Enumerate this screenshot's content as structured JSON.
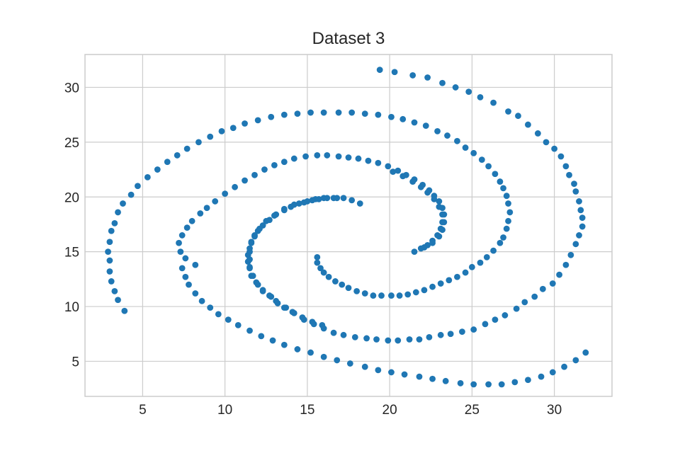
{
  "chart_data": {
    "type": "scatter",
    "title": "Dataset 3",
    "xlabel": "",
    "ylabel": "",
    "xlim": [
      1.5,
      33.5
    ],
    "ylim": [
      1.8,
      33.0
    ],
    "xticks": [
      5,
      10,
      15,
      20,
      25,
      30
    ],
    "yticks": [
      5,
      10,
      15,
      20,
      25,
      30
    ],
    "grid": true,
    "legend": "none",
    "marker_color": "#1f77b4",
    "series": [
      {
        "points": [
          [
            19.4,
            31.6
          ],
          [
            20.3,
            31.4
          ],
          [
            21.4,
            31.1
          ],
          [
            22.3,
            30.9
          ],
          [
            23.2,
            30.4
          ],
          [
            24.0,
            30.0
          ],
          [
            24.8,
            29.6
          ],
          [
            25.5,
            29.1
          ],
          [
            26.3,
            28.6
          ],
          [
            27.2,
            27.8
          ],
          [
            27.8,
            27.4
          ],
          [
            28.4,
            26.6
          ],
          [
            29.0,
            25.8
          ],
          [
            29.5,
            25.0
          ],
          [
            30.0,
            24.4
          ],
          [
            30.4,
            23.7
          ],
          [
            30.7,
            22.8
          ],
          [
            30.9,
            22.0
          ],
          [
            31.2,
            21.2
          ],
          [
            31.3,
            20.5
          ],
          [
            31.5,
            19.6
          ],
          [
            31.6,
            18.8
          ],
          [
            31.7,
            18.1
          ],
          [
            31.7,
            17.3
          ],
          [
            31.5,
            16.5
          ],
          [
            31.3,
            15.7
          ],
          [
            31.0,
            14.7
          ],
          [
            30.7,
            13.8
          ],
          [
            30.3,
            12.9
          ],
          [
            29.9,
            12.1
          ],
          [
            29.3,
            11.6
          ],
          [
            28.8,
            10.9
          ],
          [
            28.2,
            10.4
          ],
          [
            27.7,
            9.8
          ],
          [
            27.0,
            9.2
          ],
          [
            26.4,
            8.8
          ],
          [
            25.8,
            8.4
          ],
          [
            25.1,
            7.9
          ],
          [
            24.4,
            7.7
          ],
          [
            23.7,
            7.5
          ],
          [
            23.1,
            7.4
          ],
          [
            22.4,
            7.2
          ],
          [
            21.8,
            7.0
          ],
          [
            21.2,
            7.0
          ],
          [
            20.5,
            6.9
          ],
          [
            19.9,
            6.9
          ],
          [
            19.2,
            7.0
          ],
          [
            18.6,
            7.1
          ],
          [
            17.9,
            7.2
          ],
          [
            17.2,
            7.4
          ],
          [
            16.6,
            7.6
          ],
          [
            16.0,
            8.0
          ],
          [
            15.4,
            8.4
          ],
          [
            14.8,
            8.8
          ],
          [
            14.2,
            9.4
          ],
          [
            13.7,
            9.9
          ],
          [
            13.2,
            10.3
          ],
          [
            12.8,
            10.9
          ],
          [
            12.3,
            11.5
          ],
          [
            11.9,
            12.2
          ],
          [
            11.6,
            12.8
          ],
          [
            11.5,
            13.5
          ],
          [
            11.4,
            14.1
          ],
          [
            11.4,
            14.7
          ],
          [
            11.5,
            15.3
          ],
          [
            11.6,
            15.9
          ],
          [
            11.8,
            16.4
          ],
          [
            12.0,
            16.9
          ],
          [
            12.3,
            17.4
          ],
          [
            12.7,
            17.9
          ],
          [
            13.1,
            18.4
          ],
          [
            13.6,
            18.8
          ],
          [
            14.0,
            19.1
          ],
          [
            14.5,
            19.4
          ],
          [
            15.0,
            19.6
          ],
          [
            15.5,
            19.8
          ],
          [
            16.0,
            19.9
          ],
          [
            16.6,
            19.9
          ],
          [
            17.2,
            19.9
          ],
          [
            17.7,
            19.7
          ],
          [
            18.2,
            19.4
          ],
          [
            16.8,
            19.9
          ],
          [
            16.2,
            19.9
          ],
          [
            15.7,
            19.8
          ],
          [
            15.3,
            19.7
          ],
          [
            14.8,
            19.5
          ],
          [
            14.2,
            19.3
          ],
          [
            13.6,
            18.9
          ],
          [
            13.0,
            18.3
          ],
          [
            12.5,
            17.8
          ],
          [
            12.1,
            17.1
          ],
          [
            11.8,
            16.5
          ],
          [
            11.6,
            15.8
          ],
          [
            11.5,
            15.0
          ],
          [
            11.5,
            14.3
          ],
          [
            11.5,
            13.6
          ],
          [
            11.7,
            12.8
          ],
          [
            12.0,
            12.0
          ],
          [
            12.3,
            11.4
          ],
          [
            12.7,
            11.0
          ],
          [
            13.1,
            10.5
          ],
          [
            13.6,
            9.9
          ],
          [
            14.1,
            9.5
          ],
          [
            14.7,
            9.0
          ],
          [
            15.3,
            8.6
          ],
          [
            15.9,
            8.3
          ]
        ]
      },
      {
        "points": [
          [
            3.9,
            9.6
          ],
          [
            3.5,
            10.6
          ],
          [
            3.3,
            11.4
          ],
          [
            3.1,
            12.3
          ],
          [
            3.0,
            13.2
          ],
          [
            3.0,
            14.2
          ],
          [
            2.9,
            15.0
          ],
          [
            3.0,
            15.9
          ],
          [
            3.1,
            16.9
          ],
          [
            3.3,
            17.6
          ],
          [
            3.5,
            18.6
          ],
          [
            3.8,
            19.4
          ],
          [
            4.3,
            20.2
          ],
          [
            4.7,
            21.0
          ],
          [
            5.3,
            21.8
          ],
          [
            5.9,
            22.5
          ],
          [
            6.5,
            23.2
          ],
          [
            7.1,
            23.8
          ],
          [
            7.7,
            24.4
          ],
          [
            8.4,
            25.0
          ],
          [
            9.1,
            25.5
          ],
          [
            9.8,
            26.0
          ],
          [
            10.5,
            26.3
          ],
          [
            11.2,
            26.7
          ],
          [
            12.0,
            27.0
          ],
          [
            12.8,
            27.3
          ],
          [
            13.6,
            27.5
          ],
          [
            14.4,
            27.6
          ],
          [
            15.2,
            27.7
          ],
          [
            16.0,
            27.7
          ],
          [
            16.9,
            27.7
          ],
          [
            17.7,
            27.7
          ],
          [
            18.5,
            27.6
          ],
          [
            19.3,
            27.5
          ],
          [
            20.1,
            27.3
          ],
          [
            20.8,
            27.1
          ],
          [
            21.5,
            26.8
          ],
          [
            22.2,
            26.5
          ],
          [
            22.9,
            26.0
          ],
          [
            23.5,
            25.6
          ],
          [
            24.1,
            25.1
          ],
          [
            24.6,
            24.5
          ],
          [
            25.1,
            24.0
          ],
          [
            25.6,
            23.4
          ],
          [
            26.0,
            22.8
          ],
          [
            26.4,
            22.1
          ],
          [
            26.7,
            21.4
          ],
          [
            26.9,
            20.8
          ],
          [
            27.1,
            20.1
          ],
          [
            27.2,
            19.4
          ],
          [
            27.3,
            18.6
          ],
          [
            27.2,
            17.8
          ],
          [
            27.1,
            17.1
          ],
          [
            26.9,
            16.3
          ],
          [
            26.7,
            15.8
          ],
          [
            26.3,
            15.1
          ],
          [
            25.9,
            14.5
          ],
          [
            25.5,
            14.0
          ],
          [
            25.0,
            13.6
          ],
          [
            24.6,
            13.1
          ],
          [
            24.1,
            12.7
          ],
          [
            23.6,
            12.4
          ],
          [
            23.1,
            12.1
          ],
          [
            22.6,
            11.8
          ],
          [
            22.1,
            11.5
          ],
          [
            21.6,
            11.3
          ],
          [
            21.1,
            11.1
          ],
          [
            20.6,
            11.0
          ],
          [
            20.1,
            11.0
          ],
          [
            19.5,
            11.0
          ],
          [
            19.0,
            11.0
          ],
          [
            18.5,
            11.2
          ],
          [
            18.0,
            11.4
          ],
          [
            17.5,
            11.7
          ],
          [
            17.1,
            12.0
          ],
          [
            16.7,
            12.3
          ],
          [
            16.3,
            12.7
          ],
          [
            16.0,
            13.1
          ],
          [
            15.8,
            13.5
          ],
          [
            15.6,
            14.0
          ],
          [
            15.6,
            14.5
          ]
        ]
      },
      {
        "points": [
          [
            8.2,
            13.8
          ],
          [
            7.6,
            14.4
          ],
          [
            7.3,
            15.0
          ],
          [
            7.2,
            15.8
          ],
          [
            7.4,
            16.5
          ],
          [
            7.7,
            17.2
          ],
          [
            8.0,
            17.8
          ],
          [
            8.5,
            18.5
          ],
          [
            8.9,
            19.0
          ],
          [
            9.4,
            19.6
          ],
          [
            10.0,
            20.3
          ],
          [
            10.6,
            20.9
          ],
          [
            11.2,
            21.5
          ],
          [
            11.8,
            22.0
          ],
          [
            12.4,
            22.5
          ],
          [
            13.0,
            22.9
          ],
          [
            13.6,
            23.2
          ],
          [
            14.2,
            23.5
          ],
          [
            14.9,
            23.7
          ],
          [
            15.6,
            23.8
          ],
          [
            16.2,
            23.8
          ],
          [
            16.9,
            23.7
          ],
          [
            17.5,
            23.6
          ],
          [
            18.1,
            23.5
          ],
          [
            18.7,
            23.3
          ],
          [
            19.3,
            23.1
          ],
          [
            19.9,
            22.8
          ],
          [
            20.5,
            22.4
          ],
          [
            21.0,
            22.0
          ],
          [
            21.5,
            21.6
          ],
          [
            22.0,
            21.1
          ],
          [
            22.4,
            20.6
          ],
          [
            22.7,
            20.1
          ],
          [
            23.0,
            19.6
          ],
          [
            23.2,
            19.0
          ],
          [
            23.3,
            18.4
          ],
          [
            23.2,
            17.7
          ],
          [
            23.1,
            17.1
          ],
          [
            22.9,
            16.5
          ],
          [
            22.6,
            16.0
          ],
          [
            22.3,
            15.6
          ],
          [
            21.9,
            15.3
          ],
          [
            21.5,
            15.0
          ],
          [
            22.1,
            15.4
          ],
          [
            22.6,
            15.8
          ],
          [
            23.0,
            16.4
          ],
          [
            23.2,
            17.0
          ],
          [
            23.3,
            17.7
          ],
          [
            23.2,
            18.4
          ],
          [
            23.0,
            19.1
          ],
          [
            22.7,
            19.8
          ],
          [
            22.3,
            20.4
          ],
          [
            21.9,
            20.9
          ],
          [
            21.4,
            21.4
          ],
          [
            20.8,
            21.9
          ],
          [
            20.2,
            22.3
          ]
        ]
      },
      {
        "points": [
          [
            7.4,
            13.5
          ],
          [
            7.6,
            12.7
          ],
          [
            7.8,
            12.0
          ],
          [
            8.2,
            11.2
          ],
          [
            8.6,
            10.5
          ],
          [
            9.1,
            9.9
          ],
          [
            9.6,
            9.3
          ],
          [
            10.2,
            8.8
          ],
          [
            10.8,
            8.3
          ],
          [
            11.5,
            7.8
          ],
          [
            12.2,
            7.3
          ],
          [
            12.9,
            6.9
          ],
          [
            13.6,
            6.5
          ],
          [
            14.4,
            6.1
          ],
          [
            15.2,
            5.8
          ],
          [
            16.0,
            5.4
          ],
          [
            16.8,
            5.1
          ],
          [
            17.6,
            4.8
          ],
          [
            18.5,
            4.5
          ],
          [
            19.3,
            4.2
          ],
          [
            20.1,
            4.0
          ],
          [
            20.9,
            3.8
          ],
          [
            21.8,
            3.6
          ],
          [
            22.6,
            3.4
          ],
          [
            23.4,
            3.2
          ],
          [
            24.3,
            3.0
          ],
          [
            25.1,
            2.9
          ],
          [
            26.0,
            2.9
          ],
          [
            26.8,
            2.9
          ],
          [
            27.6,
            3.1
          ],
          [
            28.4,
            3.3
          ],
          [
            29.2,
            3.6
          ],
          [
            29.9,
            4.0
          ],
          [
            30.6,
            4.5
          ],
          [
            31.3,
            5.1
          ],
          [
            31.9,
            5.8
          ]
        ]
      }
    ]
  }
}
